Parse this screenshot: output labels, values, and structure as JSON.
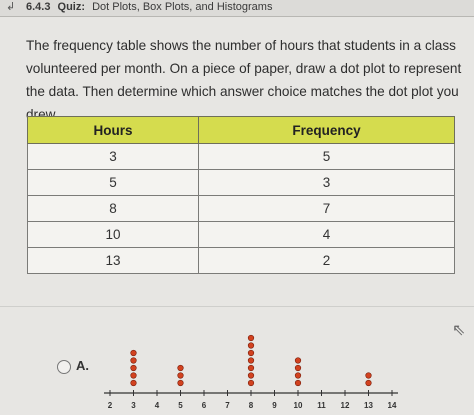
{
  "header": {
    "back_icon": "back-arrow-icon",
    "section_number": "6.4.3",
    "item_type": "Quiz:",
    "title": "Dot Plots, Box Plots, and Histograms"
  },
  "question": {
    "text": "The frequency table shows the number of hours that students in a class volunteered per month. On a piece of paper, draw a dot plot to represent the data. Then determine which answer choice matches the dot plot you drew."
  },
  "table": {
    "headers": [
      "Hours",
      "Frequency"
    ],
    "rows": [
      [
        "3",
        "5"
      ],
      [
        "5",
        "3"
      ],
      [
        "8",
        "7"
      ],
      [
        "10",
        "4"
      ],
      [
        "13",
        "2"
      ]
    ]
  },
  "answer_choices": [
    {
      "label": "A.",
      "chart_data": {
        "type": "scatter",
        "title": "",
        "xlabel": "",
        "ylabel": "",
        "xlim": [
          2,
          14
        ],
        "x_ticks": [
          2,
          3,
          4,
          5,
          6,
          7,
          8,
          9,
          10,
          11,
          12,
          13,
          14
        ],
        "points": [
          {
            "x": 3,
            "count": 5
          },
          {
            "x": 5,
            "count": 3
          },
          {
            "x": 8,
            "count": 7
          },
          {
            "x": 10,
            "count": 4
          },
          {
            "x": 13,
            "count": 2
          }
        ],
        "dot_color": "#d2421f",
        "grid": false
      }
    }
  ],
  "colors": {
    "table_header": "#d5dc4e",
    "background": "#e7e6e3"
  }
}
